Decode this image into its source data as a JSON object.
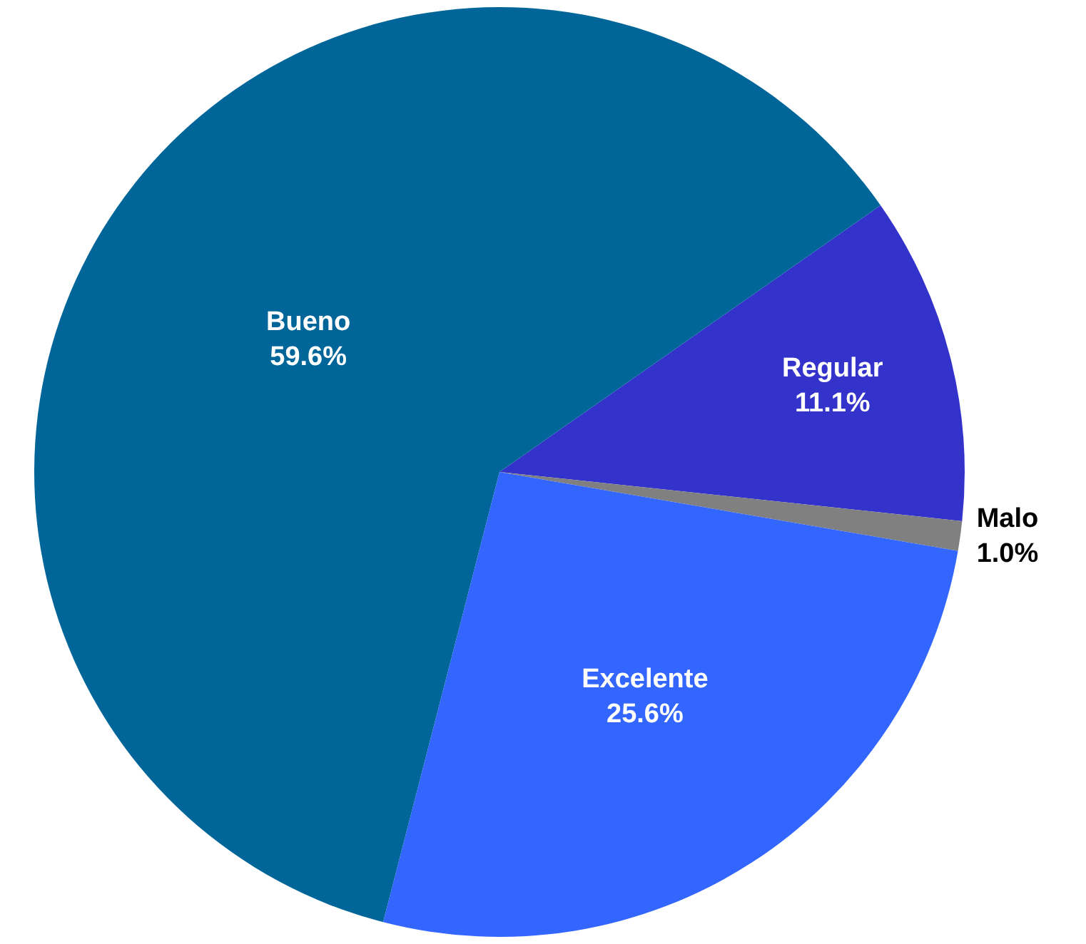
{
  "chart_data": {
    "type": "pie",
    "categories": [
      "Regular",
      "Malo",
      "Excelente",
      "Bueno"
    ],
    "values": [
      11.1,
      1.0,
      25.6,
      59.6
    ],
    "value_labels": [
      "11.1%",
      "1.0%",
      "25.6%",
      "59.6%"
    ],
    "colors": [
      "#3333cc",
      "#808080",
      "#3366ff",
      "#006699"
    ],
    "legend": false
  }
}
